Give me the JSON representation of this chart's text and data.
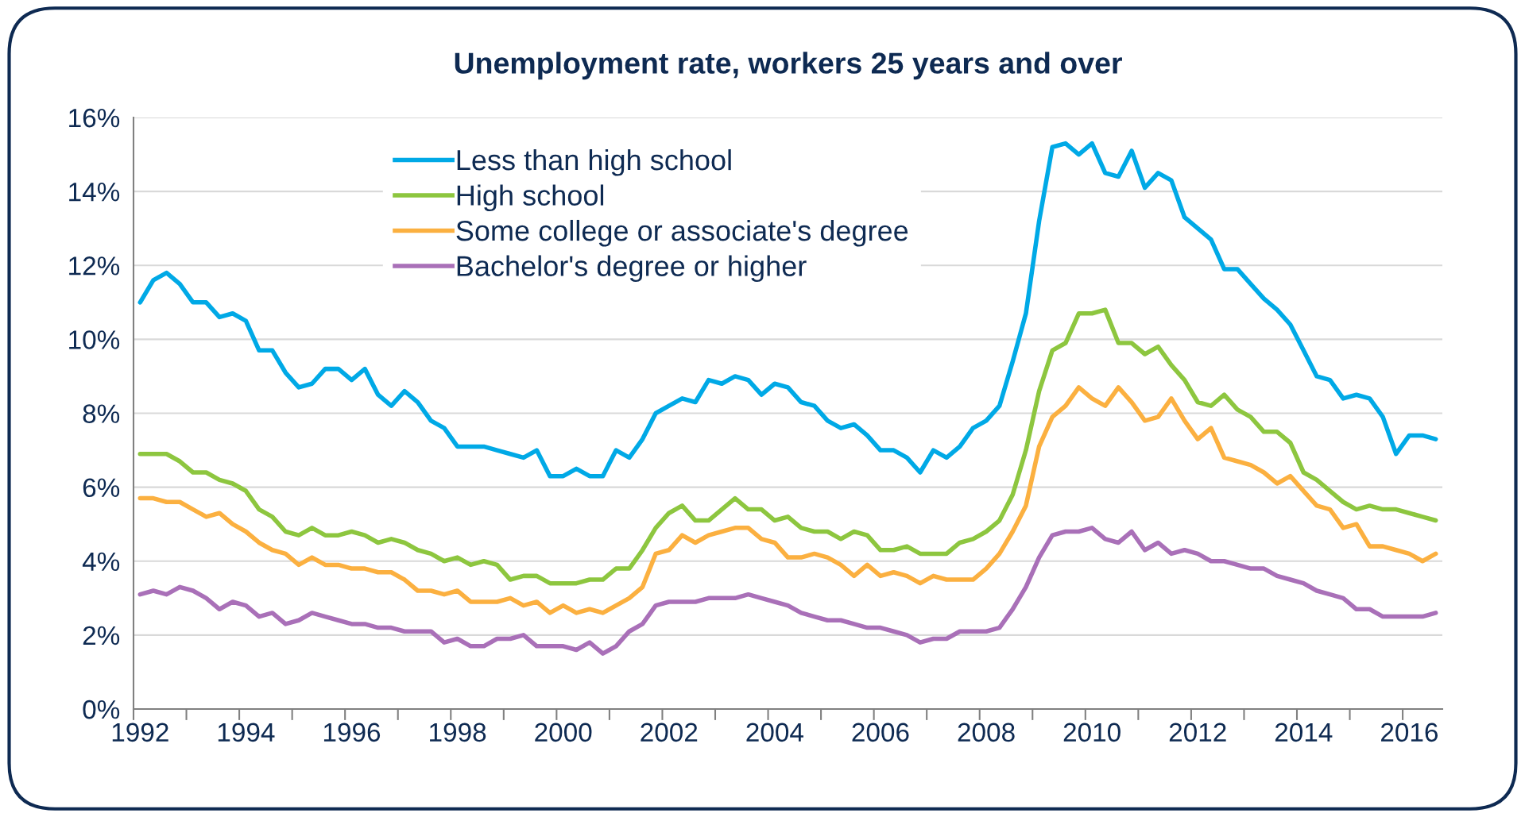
{
  "chart_data": {
    "type": "line",
    "title": "Unemployment rate, workers 25 years and over",
    "categories": [
      "1992",
      null,
      null,
      null,
      null,
      null,
      null,
      null,
      "1994",
      null,
      null,
      null,
      null,
      null,
      null,
      null,
      "1996",
      null,
      null,
      null,
      null,
      null,
      null,
      null,
      "1998",
      null,
      null,
      null,
      null,
      null,
      null,
      null,
      "2000",
      null,
      null,
      null,
      null,
      null,
      null,
      null,
      "2002",
      null,
      null,
      null,
      null,
      null,
      null,
      null,
      "2004",
      null,
      null,
      null,
      null,
      null,
      null,
      null,
      "2006",
      null,
      null,
      null,
      null,
      null,
      null,
      null,
      "2008",
      null,
      null,
      null,
      null,
      null,
      null,
      null,
      "2010",
      null,
      null,
      null,
      null,
      null,
      null,
      null,
      "2012",
      null,
      null,
      null,
      null,
      null,
      null,
      null,
      "2014",
      null,
      null,
      null,
      null,
      null,
      null,
      null,
      "2016",
      null,
      null
    ],
    "series": [
      {
        "name": "Less than high school",
        "color": "#00a9e6",
        "values": [
          11.0,
          11.6,
          11.8,
          11.5,
          11.0,
          11.0,
          10.6,
          10.7,
          10.5,
          9.7,
          9.7,
          9.1,
          8.7,
          8.8,
          9.2,
          9.2,
          8.9,
          9.2,
          8.5,
          8.2,
          8.6,
          8.3,
          7.8,
          7.6,
          7.1,
          7.1,
          7.1,
          7.0,
          6.9,
          6.8,
          7.0,
          6.3,
          6.3,
          6.5,
          6.3,
          6.3,
          7.0,
          6.8,
          7.3,
          8.0,
          8.2,
          8.4,
          8.3,
          8.9,
          8.8,
          9.0,
          8.9,
          8.5,
          8.8,
          8.7,
          8.3,
          8.2,
          7.8,
          7.6,
          7.7,
          7.4,
          7.0,
          7.0,
          6.8,
          6.4,
          7.0,
          6.8,
          7.1,
          7.6,
          7.8,
          8.2,
          9.4,
          10.7,
          13.2,
          15.2,
          15.3,
          15.0,
          15.3,
          14.5,
          14.4,
          15.1,
          14.1,
          14.5,
          14.3,
          13.3,
          13.0,
          12.7,
          11.9,
          11.9,
          11.5,
          11.1,
          10.8,
          10.4,
          9.7,
          9.0,
          8.9,
          8.4,
          8.5,
          8.4,
          7.9,
          6.9,
          7.4,
          7.4,
          7.3
        ]
      },
      {
        "name": "High school",
        "color": "#8dc63f",
        "values": [
          6.9,
          6.9,
          6.9,
          6.7,
          6.4,
          6.4,
          6.2,
          6.1,
          5.9,
          5.4,
          5.2,
          4.8,
          4.7,
          4.9,
          4.7,
          4.7,
          4.8,
          4.7,
          4.5,
          4.6,
          4.5,
          4.3,
          4.2,
          4.0,
          4.1,
          3.9,
          4.0,
          3.9,
          3.5,
          3.6,
          3.6,
          3.4,
          3.4,
          3.4,
          3.5,
          3.5,
          3.8,
          3.8,
          4.3,
          4.9,
          5.3,
          5.5,
          5.1,
          5.1,
          5.4,
          5.7,
          5.4,
          5.4,
          5.1,
          5.2,
          4.9,
          4.8,
          4.8,
          4.6,
          4.8,
          4.7,
          4.3,
          4.3,
          4.4,
          4.2,
          4.2,
          4.2,
          4.5,
          4.6,
          4.8,
          5.1,
          5.8,
          7.0,
          8.6,
          9.7,
          9.9,
          10.7,
          10.7,
          10.8,
          9.9,
          9.9,
          9.6,
          9.8,
          9.3,
          8.9,
          8.3,
          8.2,
          8.5,
          8.1,
          7.9,
          7.5,
          7.5,
          7.2,
          6.4,
          6.2,
          5.9,
          5.6,
          5.4,
          5.5,
          5.4,
          5.4,
          5.3,
          5.2,
          5.1
        ]
      },
      {
        "name": "Some college or associate's degree",
        "color": "#fbb040",
        "values": [
          5.7,
          5.7,
          5.6,
          5.6,
          5.4,
          5.2,
          5.3,
          5.0,
          4.8,
          4.5,
          4.3,
          4.2,
          3.9,
          4.1,
          3.9,
          3.9,
          3.8,
          3.8,
          3.7,
          3.7,
          3.5,
          3.2,
          3.2,
          3.1,
          3.2,
          2.9,
          2.9,
          2.9,
          3.0,
          2.8,
          2.9,
          2.6,
          2.8,
          2.6,
          2.7,
          2.6,
          2.8,
          3.0,
          3.3,
          4.2,
          4.3,
          4.7,
          4.5,
          4.7,
          4.8,
          4.9,
          4.9,
          4.6,
          4.5,
          4.1,
          4.1,
          4.2,
          4.1,
          3.9,
          3.6,
          3.9,
          3.6,
          3.7,
          3.6,
          3.4,
          3.6,
          3.5,
          3.5,
          3.5,
          3.8,
          4.2,
          4.8,
          5.5,
          7.1,
          7.9,
          8.2,
          8.7,
          8.4,
          8.2,
          8.7,
          8.3,
          7.8,
          7.9,
          8.4,
          7.8,
          7.3,
          7.6,
          6.8,
          6.7,
          6.6,
          6.4,
          6.1,
          6.3,
          5.9,
          5.5,
          5.4,
          4.9,
          5.0,
          4.4,
          4.4,
          4.3,
          4.2,
          4.0,
          4.2
        ]
      },
      {
        "name": "Bachelor's degree or higher",
        "color": "#a970b8",
        "values": [
          3.1,
          3.2,
          3.1,
          3.3,
          3.2,
          3.0,
          2.7,
          2.9,
          2.8,
          2.5,
          2.6,
          2.3,
          2.4,
          2.6,
          2.5,
          2.4,
          2.3,
          2.3,
          2.2,
          2.2,
          2.1,
          2.1,
          2.1,
          1.8,
          1.9,
          1.7,
          1.7,
          1.9,
          1.9,
          2.0,
          1.7,
          1.7,
          1.7,
          1.6,
          1.8,
          1.5,
          1.7,
          2.1,
          2.3,
          2.8,
          2.9,
          2.9,
          2.9,
          3.0,
          3.0,
          3.0,
          3.1,
          3.0,
          2.9,
          2.8,
          2.6,
          2.5,
          2.4,
          2.4,
          2.3,
          2.2,
          2.2,
          2.1,
          2.0,
          1.8,
          1.9,
          1.9,
          2.1,
          2.1,
          2.1,
          2.2,
          2.7,
          3.3,
          4.1,
          4.7,
          4.8,
          4.8,
          4.9,
          4.6,
          4.5,
          4.8,
          4.3,
          4.5,
          4.2,
          4.3,
          4.2,
          4.0,
          4.0,
          3.9,
          3.8,
          3.8,
          3.6,
          3.5,
          3.4,
          3.2,
          3.1,
          3.0,
          2.7,
          2.7,
          2.5,
          2.5,
          2.5,
          2.5,
          2.6
        ]
      }
    ],
    "ylim": [
      0,
      16
    ],
    "yticks": [
      {
        "value": 0,
        "label": "0%"
      },
      {
        "value": 2,
        "label": "2%"
      },
      {
        "value": 4,
        "label": "4%"
      },
      {
        "value": 6,
        "label": "6%"
      },
      {
        "value": 8,
        "label": "8%"
      },
      {
        "value": 10,
        "label": "10%"
      },
      {
        "value": 12,
        "label": "12%"
      },
      {
        "value": 14,
        "label": "14%"
      },
      {
        "value": 16,
        "label": "16%"
      }
    ],
    "grid": "y",
    "legend": "top left",
    "marker": "none",
    "line_style": "solid"
  }
}
